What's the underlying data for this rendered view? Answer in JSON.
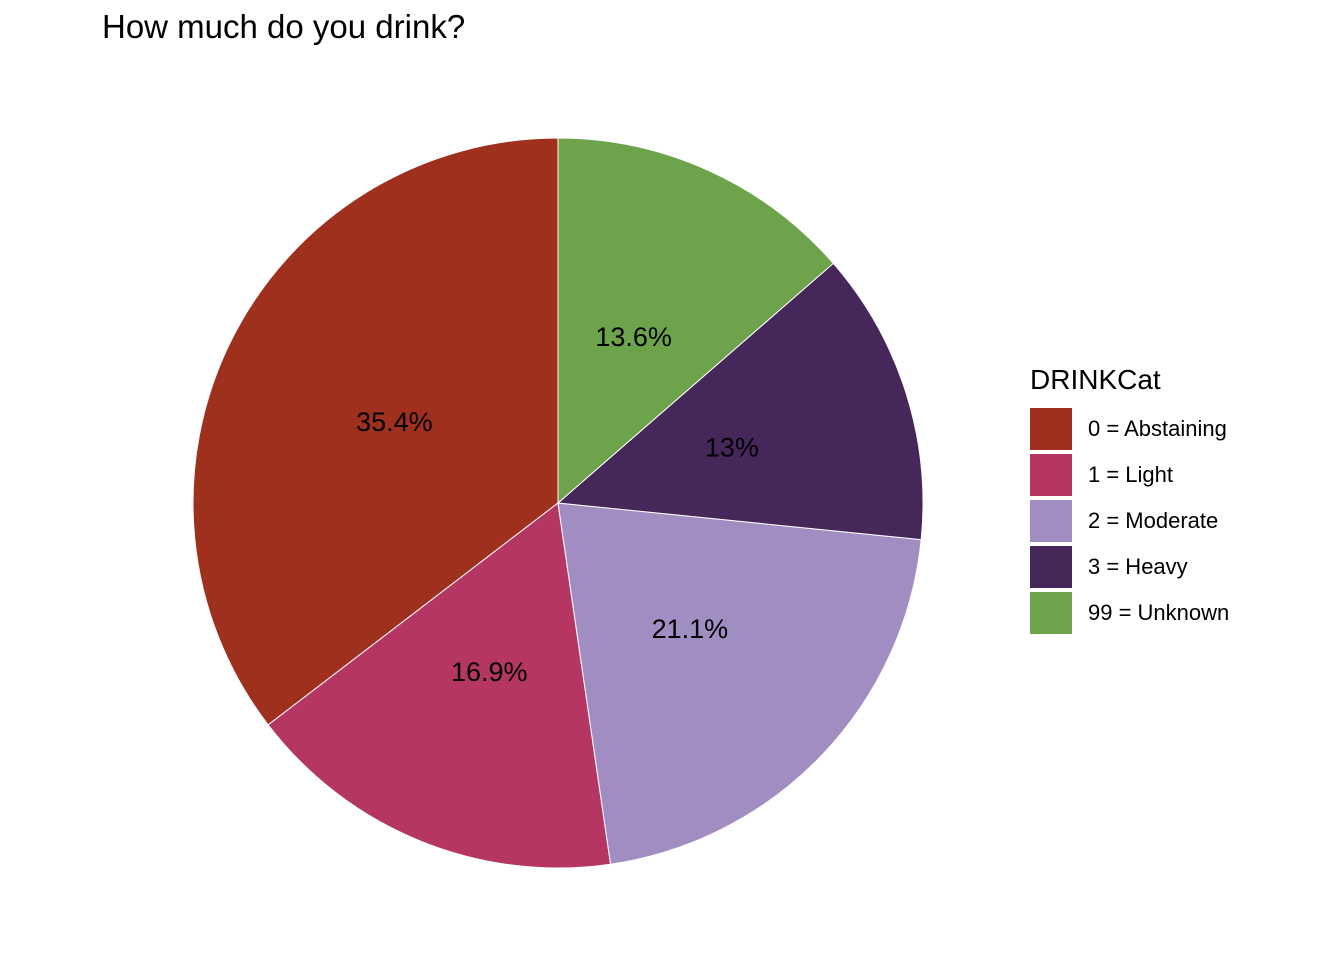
{
  "chart_data": {
    "type": "pie",
    "title": "How much do you drink?",
    "legend_title": "DRINKCat",
    "legend_position": "right",
    "start": "12 o'clock",
    "direction": "counter-clockwise",
    "slices": [
      {
        "category": "0 = Abstaining",
        "value": 35.4,
        "label": "35.4%",
        "color": "#A0301E"
      },
      {
        "category": "1 = Light",
        "value": 16.9,
        "label": "16.9%",
        "color": "#B53663"
      },
      {
        "category": "2 = Moderate",
        "value": 21.1,
        "label": "21.1%",
        "color": "#A28DC2"
      },
      {
        "category": "3 = Heavy",
        "value": 13.0,
        "label": "13%",
        "color": "#45275A"
      },
      {
        "category": "99 = Unknown",
        "value": 13.6,
        "label": "13.6%",
        "color": "#6DA34B"
      }
    ]
  }
}
